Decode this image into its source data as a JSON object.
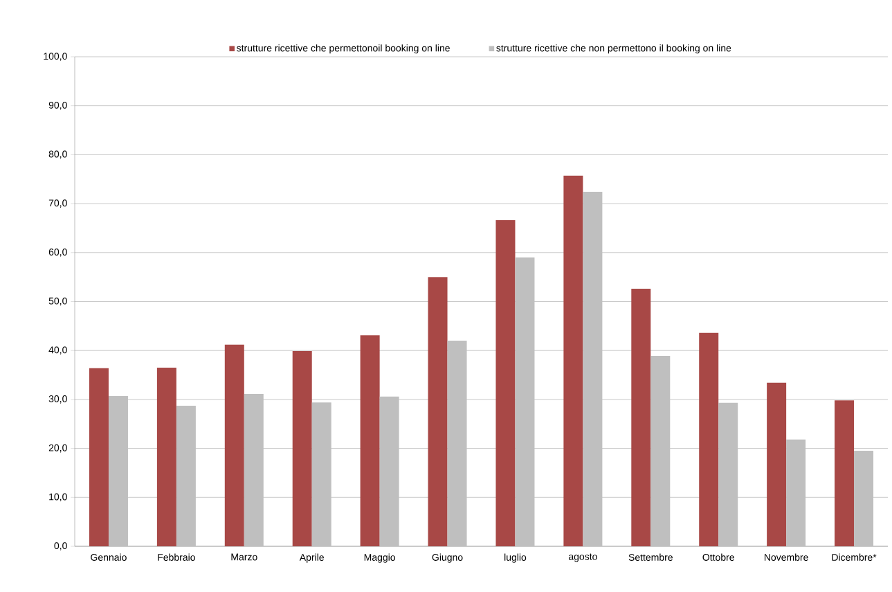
{
  "chart_data": {
    "type": "bar",
    "categories": [
      "Gennaio",
      "Febbraio",
      "Marzo",
      "Aprile",
      "Maggio",
      "Giugno",
      "luglio",
      "agosto",
      "Settembre",
      "Ottobre",
      "Novembre",
      "Dicembre*"
    ],
    "series": [
      {
        "name": "strutture ricettive che permettonoil booking on line",
        "color": "#a84846",
        "values": [
          36.4,
          36.5,
          41.2,
          39.9,
          43.1,
          55.0,
          66.6,
          75.7,
          52.6,
          43.6,
          33.4,
          29.8
        ]
      },
      {
        "name": "strutture ricettive che non permettono il booking on line",
        "color": "#bfbfbf",
        "values": [
          30.7,
          28.7,
          31.1,
          29.4,
          30.6,
          42.0,
          59.0,
          72.4,
          38.9,
          29.3,
          21.8,
          19.5
        ]
      }
    ],
    "ylim": [
      0,
      100
    ],
    "yticks": [
      {
        "value": 0,
        "label": "0,0"
      },
      {
        "value": 10,
        "label": "10,0"
      },
      {
        "value": 20,
        "label": "20,0"
      },
      {
        "value": 30,
        "label": "30,0"
      },
      {
        "value": 40,
        "label": "40,0"
      },
      {
        "value": 50,
        "label": "50,0"
      },
      {
        "value": 60,
        "label": "60,0"
      },
      {
        "value": 70,
        "label": "70,0"
      },
      {
        "value": 80,
        "label": "80,0"
      },
      {
        "value": 90,
        "label": "90,0"
      },
      {
        "value": 100,
        "label": "100,0"
      }
    ],
    "grid": "y",
    "legend": "top"
  }
}
